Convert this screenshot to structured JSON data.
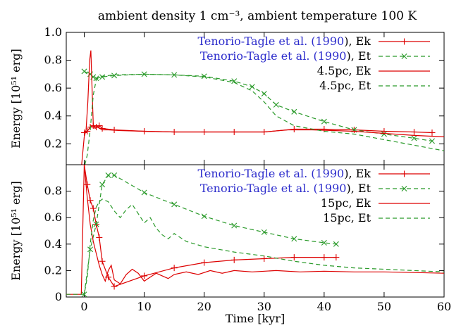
{
  "chart_data": [
    {
      "type": "line",
      "title": "ambient density 1 cm⁻³, ambient temperature 100 K",
      "ylabel": "Energy [10⁵¹ erg]",
      "xlim": [
        -3,
        60
      ],
      "ylim": [
        0.05,
        1.0
      ],
      "yticks": [
        0.2,
        0.4,
        0.6,
        0.8,
        1.0
      ],
      "ytick_labels": [
        "0.2",
        "0.4",
        "0.6",
        "0.8",
        "1.0"
      ],
      "legend_position": "top-right",
      "series": [
        {
          "name": "Tenorio-Tagle et al. (1990), Ek",
          "name_parts": [
            "Tenorio-Tagle et al. (",
            "1990",
            "), Ek"
          ],
          "style": "solid-plus",
          "color": "#dd0000",
          "x": [
            0,
            0.5,
            1,
            1.5,
            2,
            2.5,
            3,
            5,
            10,
            15,
            20,
            25,
            30,
            35,
            40,
            45,
            50,
            55,
            58
          ],
          "y": [
            0.28,
            0.29,
            0.32,
            0.33,
            0.32,
            0.33,
            0.31,
            0.3,
            0.29,
            0.285,
            0.285,
            0.285,
            0.285,
            0.305,
            0.305,
            0.3,
            0.29,
            0.285,
            0.28
          ]
        },
        {
          "name": "Tenorio-Tagle et al. (1990), Et",
          "name_parts": [
            "Tenorio-Tagle et al. (",
            "1990",
            "), Et"
          ],
          "style": "dashed-x",
          "color": "#2a9a2a",
          "x": [
            0,
            1,
            1.5,
            2,
            3,
            5,
            10,
            15,
            20,
            25,
            28,
            30,
            32,
            35,
            40,
            45,
            50,
            55,
            58
          ],
          "y": [
            0.72,
            0.7,
            0.68,
            0.67,
            0.68,
            0.69,
            0.7,
            0.695,
            0.685,
            0.65,
            0.61,
            0.56,
            0.48,
            0.43,
            0.36,
            0.3,
            0.27,
            0.24,
            0.22
          ]
        },
        {
          "name": "4.5pc, Ek",
          "style": "solid",
          "color": "#dd0000",
          "x": [
            -3,
            -0.5,
            0,
            0.3,
            0.6,
            0.9,
            1.1,
            1.3,
            1.5,
            1.8,
            2.2,
            3,
            4,
            6,
            10,
            15,
            20,
            25,
            30,
            34,
            38,
            45,
            50,
            55,
            60
          ],
          "y": [
            0.02,
            0.02,
            0.25,
            0.3,
            0.5,
            0.8,
            0.87,
            0.6,
            0.34,
            0.31,
            0.32,
            0.3,
            0.3,
            0.295,
            0.29,
            0.285,
            0.285,
            0.285,
            0.285,
            0.3,
            0.3,
            0.29,
            0.275,
            0.26,
            0.25
          ]
        },
        {
          "name": "4.5pc, Et",
          "style": "dashed",
          "color": "#2a9a2a",
          "x": [
            -3,
            -0.5,
            0,
            0.5,
            1,
            1.5,
            2,
            2.5,
            3,
            5,
            10,
            15,
            20,
            25,
            28,
            30,
            32,
            35,
            40,
            45,
            50,
            55,
            60
          ],
          "y": [
            0.02,
            0.02,
            0.03,
            0.12,
            0.3,
            0.55,
            0.66,
            0.68,
            0.685,
            0.695,
            0.7,
            0.695,
            0.68,
            0.64,
            0.58,
            0.5,
            0.4,
            0.33,
            0.29,
            0.27,
            0.23,
            0.19,
            0.15
          ]
        }
      ]
    },
    {
      "type": "line",
      "xlabel": "Time [kyr]",
      "ylabel": "Energy [10⁵¹ erg]",
      "xlim": [
        -3,
        60
      ],
      "ylim": [
        0,
        1.0
      ],
      "xticks": [
        0,
        10,
        20,
        30,
        40,
        50,
        60
      ],
      "xtick_labels": [
        "0",
        "10",
        "20",
        "30",
        "40",
        "50",
        "60"
      ],
      "yticks": [
        0,
        0.2,
        0.4,
        0.6,
        0.8
      ],
      "ytick_labels": [
        "0",
        "0.2",
        "0.4",
        "0.6",
        "0.8"
      ],
      "legend_position": "top-right",
      "series": [
        {
          "name": "Tenorio-Tagle et al. (1990), Ek",
          "name_parts": [
            "Tenorio-Tagle et al. (",
            "1990",
            "), Ek"
          ],
          "style": "solid-plus",
          "color": "#dd0000",
          "x": [
            0,
            0.5,
            1,
            1.5,
            2,
            2.5,
            3,
            4,
            5,
            10,
            15,
            20,
            25,
            30,
            35,
            40,
            42
          ],
          "y": [
            1.0,
            0.85,
            0.73,
            0.67,
            0.55,
            0.45,
            0.27,
            0.15,
            0.08,
            0.16,
            0.22,
            0.26,
            0.28,
            0.29,
            0.3,
            0.3,
            0.3
          ]
        },
        {
          "name": "Tenorio-Tagle et al. (1990), Et",
          "name_parts": [
            "Tenorio-Tagle et al. (",
            "1990",
            "), Et"
          ],
          "style": "dashed-x",
          "color": "#2a9a2a",
          "x": [
            0,
            1,
            2,
            3,
            4,
            5,
            10,
            15,
            20,
            25,
            30,
            35,
            40,
            42
          ],
          "y": [
            0.02,
            0.36,
            0.55,
            0.85,
            0.92,
            0.92,
            0.79,
            0.7,
            0.61,
            0.54,
            0.49,
            0.44,
            0.41,
            0.4
          ]
        },
        {
          "name": "15pc, Ek",
          "style": "solid",
          "color": "#dd0000",
          "x": [
            -3,
            -0.5,
            0,
            0.5,
            1,
            1.5,
            2,
            2.5,
            3,
            3.5,
            4,
            4.5,
            5,
            6,
            7,
            8,
            9,
            10,
            11,
            12,
            13,
            14,
            15,
            17,
            19,
            21,
            23,
            25,
            28,
            32,
            36,
            40,
            45,
            50,
            55,
            60
          ],
          "y": [
            0.02,
            0.02,
            1.0,
            0.75,
            0.55,
            0.42,
            0.33,
            0.24,
            0.17,
            0.12,
            0.2,
            0.24,
            0.13,
            0.1,
            0.17,
            0.21,
            0.18,
            0.12,
            0.15,
            0.18,
            0.16,
            0.14,
            0.17,
            0.19,
            0.17,
            0.2,
            0.18,
            0.2,
            0.19,
            0.2,
            0.19,
            0.195,
            0.19,
            0.19,
            0.185,
            0.18
          ]
        },
        {
          "name": "15pc, Et",
          "style": "dashed",
          "color": "#2a9a2a",
          "x": [
            -3,
            -0.5,
            0,
            0.5,
            1,
            1.5,
            2,
            2.5,
            3,
            4,
            5,
            6,
            7,
            8,
            9,
            10,
            11,
            12,
            13,
            14,
            15,
            17,
            20,
            25,
            30,
            35,
            40,
            45,
            50,
            55,
            60
          ],
          "y": [
            0.02,
            0.02,
            0.02,
            0.15,
            0.4,
            0.58,
            0.68,
            0.72,
            0.74,
            0.72,
            0.65,
            0.6,
            0.66,
            0.7,
            0.63,
            0.56,
            0.6,
            0.52,
            0.47,
            0.44,
            0.48,
            0.42,
            0.38,
            0.34,
            0.31,
            0.27,
            0.24,
            0.22,
            0.21,
            0.2,
            0.19
          ]
        }
      ]
    }
  ]
}
